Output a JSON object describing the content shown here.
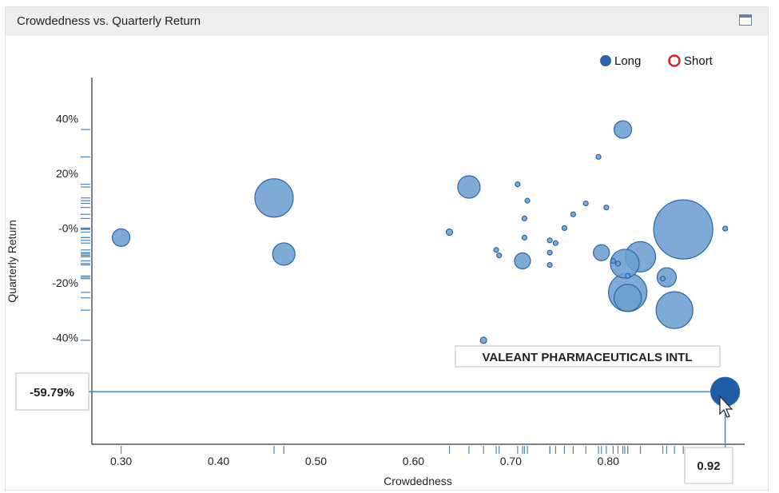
{
  "panel": {
    "title": "Crowdedness vs. Quarterly Return",
    "maximize_icon": "window-maximize-icon"
  },
  "colors": {
    "long_fill": "#6b9fcf",
    "long_stroke": "#2b65a8",
    "highlight_fill": "#1f5ea6",
    "short_stroke": "#e0202a",
    "axis": "#000000",
    "rug": "#4a86c0"
  },
  "legend": {
    "placement": "top-right",
    "items": [
      {
        "label": "Long",
        "style": "filled"
      },
      {
        "label": "Short",
        "style": "hollow"
      }
    ]
  },
  "tooltip": {
    "label": "VALEANT PHARMACEUTICALS INTL",
    "y_readout": "-59.79%",
    "x_readout": "0.92"
  },
  "chart_data": {
    "type": "scatter",
    "title": "",
    "xlabel": "Crowdedness",
    "ylabel": "Quarterly Return",
    "xlim": [
      0.27,
      0.94
    ],
    "ylim": [
      -79,
      55
    ],
    "x_ticks": [
      "0.30",
      "0.40",
      "0.50",
      "0.60",
      "0.70",
      "0.80"
    ],
    "x_tick_values": [
      0.3,
      0.4,
      0.5,
      0.6,
      0.7,
      0.8
    ],
    "y_ticks": [
      "40%",
      "20%",
      "-0%",
      "-20%",
      "-40%"
    ],
    "y_tick_values": [
      40,
      20,
      0,
      -20,
      -40
    ],
    "size_note": "bubble size is relative (unlabeled)",
    "series": [
      {
        "name": "Long",
        "points": [
          {
            "x": 0.3,
            "y": -3.5,
            "size": 11
          },
          {
            "x": 0.457,
            "y": 11,
            "size": 24
          },
          {
            "x": 0.467,
            "y": -9.5,
            "size": 14
          },
          {
            "x": 0.637,
            "y": -1.5,
            "size": 4
          },
          {
            "x": 0.657,
            "y": 15,
            "size": 14
          },
          {
            "x": 0.672,
            "y": -41,
            "size": 4
          },
          {
            "x": 0.685,
            "y": -8,
            "size": 3
          },
          {
            "x": 0.688,
            "y": -10,
            "size": 3
          },
          {
            "x": 0.707,
            "y": 16,
            "size": 3
          },
          {
            "x": 0.712,
            "y": -12,
            "size": 10
          },
          {
            "x": 0.714,
            "y": 3.5,
            "size": 3
          },
          {
            "x": 0.714,
            "y": -3.5,
            "size": 3
          },
          {
            "x": 0.717,
            "y": 10,
            "size": 3
          },
          {
            "x": 0.74,
            "y": -4.5,
            "size": 3
          },
          {
            "x": 0.74,
            "y": -9,
            "size": 3
          },
          {
            "x": 0.74,
            "y": -13.5,
            "size": 3
          },
          {
            "x": 0.746,
            "y": -5.5,
            "size": 3
          },
          {
            "x": 0.755,
            "y": 0,
            "size": 3
          },
          {
            "x": 0.764,
            "y": 5,
            "size": 3
          },
          {
            "x": 0.777,
            "y": 9,
            "size": 3
          },
          {
            "x": 0.79,
            "y": 26,
            "size": 3
          },
          {
            "x": 0.793,
            "y": -9,
            "size": 10
          },
          {
            "x": 0.798,
            "y": 7.5,
            "size": 3
          },
          {
            "x": 0.805,
            "y": -12,
            "size": 3
          },
          {
            "x": 0.81,
            "y": -13,
            "size": 3
          },
          {
            "x": 0.815,
            "y": 36,
            "size": 11
          },
          {
            "x": 0.817,
            "y": -13,
            "size": 18
          },
          {
            "x": 0.82,
            "y": -17.5,
            "size": 3
          },
          {
            "x": 0.82,
            "y": -23.5,
            "size": 24
          },
          {
            "x": 0.82,
            "y": -25.5,
            "size": 17
          },
          {
            "x": 0.833,
            "y": -10.5,
            "size": 19
          },
          {
            "x": 0.856,
            "y": -18.5,
            "size": 3
          },
          {
            "x": 0.86,
            "y": -18,
            "size": 12
          },
          {
            "x": 0.868,
            "y": -30,
            "size": 23
          },
          {
            "x": 0.877,
            "y": -0.5,
            "size": 37
          },
          {
            "x": 0.92,
            "y": -0.2,
            "size": 3
          },
          {
            "x": 0.92,
            "y": -59.79,
            "size": 18,
            "highlight": true
          }
        ]
      },
      {
        "name": "Short",
        "points": []
      }
    ],
    "grid": false
  }
}
